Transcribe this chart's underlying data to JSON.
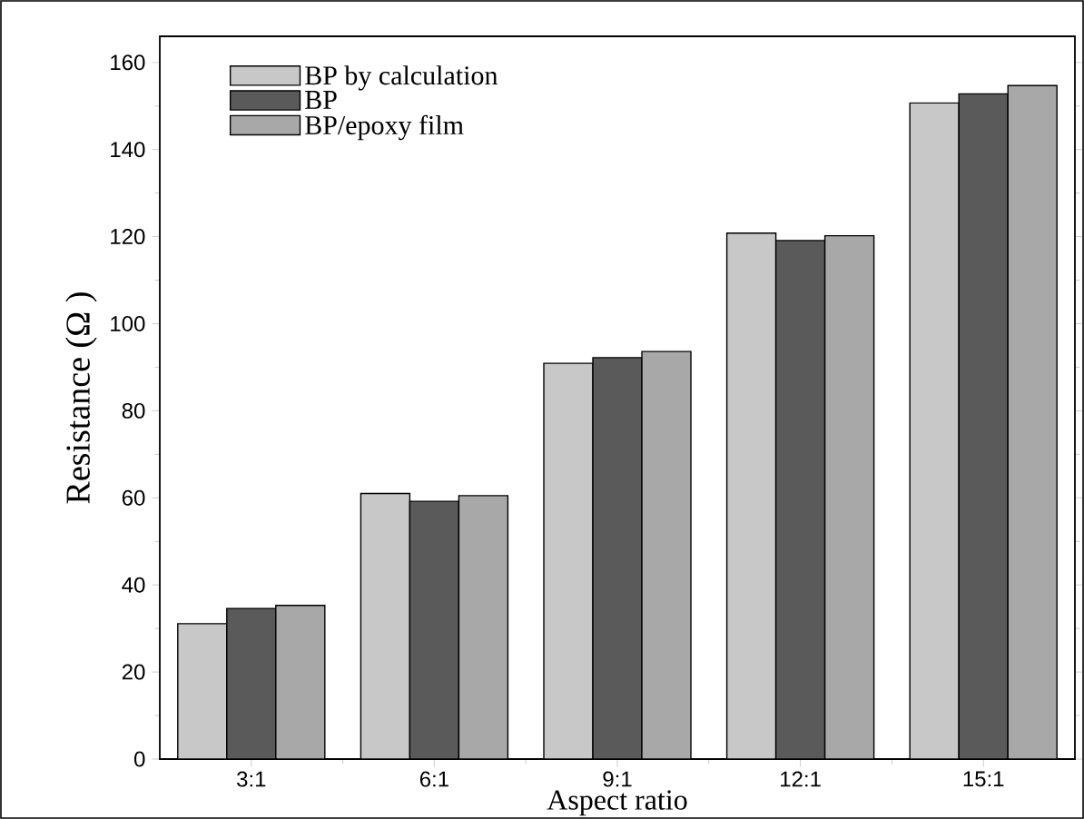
{
  "chart_data": {
    "type": "bar",
    "xlabel": "Aspect ratio",
    "ylabel": "Resistance (Ω )",
    "categories": [
      "3:1",
      "6:1",
      "9:1",
      "12:1",
      "15:1"
    ],
    "series": [
      {
        "name": "BP by calculation",
        "color": "#c8c8c8",
        "values": [
          31.1,
          61,
          90.9,
          120.8,
          150.7
        ]
      },
      {
        "name": "BP",
        "color": "#5a5a5a",
        "values": [
          34.6,
          59.2,
          92.2,
          119.1,
          152.8
        ]
      },
      {
        "name": "BP/epoxy film",
        "color": "#a8a8a8",
        "values": [
          35.3,
          60.5,
          93.6,
          120.2,
          154.7
        ]
      }
    ],
    "ylim": [
      0,
      166
    ],
    "yticks": [
      0,
      20,
      40,
      60,
      80,
      100,
      120,
      140,
      160
    ],
    "grid": false,
    "legend": "top left"
  }
}
